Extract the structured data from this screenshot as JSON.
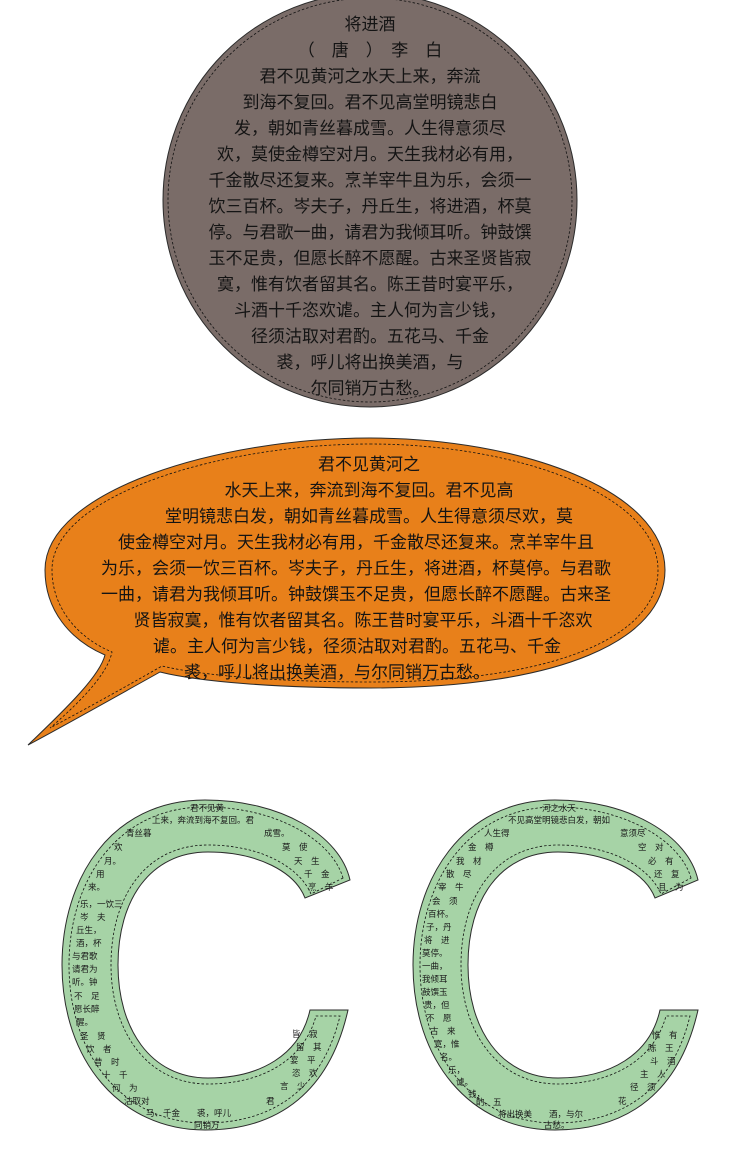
{
  "circle": {
    "title": "将进酒",
    "author": "（　唐　）　李　白",
    "lines": [
      "君不见黄河之水天上来，奔流",
      "到海不复回。君不见高堂明镜悲白",
      "发，朝如青丝暮成雪。人生得意须尽",
      "欢，莫使金樽空对月。天生我材必有用，",
      "千金散尽还复来。烹羊宰牛且为乐，会须一",
      "饮三百杯。岑夫子，丹丘生，将进酒，杯莫",
      "停。与君歌一曲，请君为我倾耳听。钟鼓馔",
      "玉不足贵，但愿长醉不愿醒。古来圣贤皆寂",
      "寞，惟有饮者留其名。陈王昔时宴平乐，",
      "斗酒十千恣欢谑。主人何为言少钱，",
      "径须沽取对君酌。五花马、千金",
      "裘，呼儿将出换美酒，与",
      "尔同销万古愁。"
    ],
    "fill_color": "#7a6c68"
  },
  "bubble": {
    "lines": [
      "君不见黄河之",
      "水天上来，奔流到海不复回。君不见高",
      "堂明镜悲白发，朝如青丝暮成雪。人生得意须尽欢，莫",
      "使金樽空对月。天生我材必有用，千金散尽还复来。烹羊宰牛且",
      "为乐，会须一饮三百杯。岑夫子，丹丘生，将进酒，杯莫停。与君歌",
      "一曲，请君为我倾耳听。钟鼓馔玉不足贵，但愿长醉不愿醒。古来圣",
      "贤皆寂寞，惟有饮者留其名。陈王昔时宴平乐，斗酒十千恣欢",
      "谑。主人何为言少钱，径须沽取对君酌。五花马、千金",
      "裘，呼儿将出换美酒，与尔同销万古愁。"
    ],
    "fill_color": "#e8801a"
  },
  "c_left": {
    "lines": [
      "君不见黄",
      "上来，奔流到海不复回。君",
      "青丝暮",
      "成雪。",
      "欢",
      "莫　使",
      "月。",
      "天　生",
      "用",
      "千　金",
      "来。",
      "烹　羊",
      "乐，一饮三",
      "岑　夫",
      "丘生，",
      "酒，杯",
      "与君歌",
      "请君为",
      "听。钟",
      "不　足",
      "愿长醉",
      "醒。",
      "皆　寂",
      "圣　贤",
      "留　其",
      "饮　者",
      "宴　平",
      "昔　时",
      "恣　欢",
      "十　千",
      "言　少",
      "何　为",
      "君",
      "沽取对",
      "马、千金　　裘，呼儿",
      "同销万"
    ],
    "fill_color": "#a6d3a6"
  },
  "c_right": {
    "lines": [
      "河之水天",
      "不见高堂明镜悲白发，朝如",
      "人生得",
      "意须尽",
      "金　樽",
      "空　对",
      "我　材",
      "必　有",
      "散　尽",
      "还　复",
      "宰　牛",
      "且　为",
      "会　须",
      "百杯。",
      "子，丹",
      "将　进",
      "莫停。",
      "一曲，",
      "我倾耳",
      "鼓馔玉",
      "贵，但",
      "不　愿",
      "古　来",
      "寞，惟",
      "名。",
      "惟　有",
      "陈　王",
      "乐，",
      "斗　酒",
      "谑。",
      "主　人",
      "钱，",
      "径　须",
      "酌。五",
      "花",
      "将出换美　　酒，与尔",
      "古愁。"
    ],
    "fill_color": "#a6d3a6"
  }
}
